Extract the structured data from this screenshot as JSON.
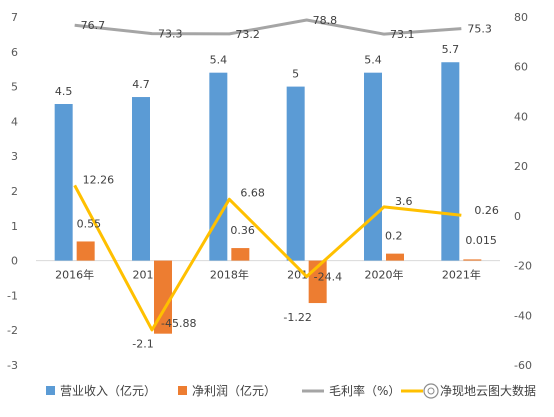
{
  "chart_data": {
    "type": "bar",
    "categories": [
      "2016年",
      "2017年",
      "2018年",
      "2019年",
      "2020年",
      "2021年"
    ],
    "series": [
      {
        "name": "营业收入（亿元）",
        "type": "bar",
        "axis": "left",
        "color": "#5B9BD5",
        "values": [
          4.5,
          4.7,
          5.4,
          5,
          5.4,
          5.7
        ],
        "labels": [
          "4.5",
          "4.7",
          "5.4",
          "5",
          "5.4",
          "5.7"
        ]
      },
      {
        "name": "净利润（亿元）",
        "type": "bar",
        "axis": "left",
        "color": "#ED7D31",
        "values": [
          0.55,
          -2.1,
          0.36,
          -1.22,
          0.2,
          0.015
        ],
        "labels": [
          "0.55",
          "-2.1",
          "0.36",
          "-1.22",
          "0.2",
          "0.015"
        ]
      },
      {
        "name": "毛利率（%）",
        "type": "line",
        "axis": "right",
        "color": "#A5A5A5",
        "values": [
          76.7,
          73.3,
          73.2,
          78.8,
          73.1,
          75.3
        ],
        "labels": [
          "76.7",
          "73.3",
          "73.2",
          "78.8",
          "73.1",
          "75.3"
        ]
      },
      {
        "name": "",
        "type": "line",
        "axis": "right",
        "color": "#FFC000",
        "values": [
          12.26,
          -45.88,
          6.68,
          -24.4,
          3.6,
          0.26
        ],
        "labels": [
          "12.26",
          "-45.88",
          "6.68",
          "-24.4",
          "3.6",
          "0.26"
        ]
      }
    ],
    "y_left": {
      "min": -3,
      "max": 7,
      "step": 1,
      "ticks": [
        "-3",
        "-2",
        "-1",
        "0",
        "1",
        "2",
        "3",
        "4",
        "5",
        "6",
        "7"
      ]
    },
    "y_right": {
      "min": -60,
      "max": 80,
      "step": 20,
      "ticks": [
        "-60",
        "-40",
        "-20",
        "0",
        "20",
        "40",
        "60",
        "80"
      ]
    },
    "grid": false,
    "legend_position": "bottom",
    "watermark_text": "净现地云图大数据"
  }
}
